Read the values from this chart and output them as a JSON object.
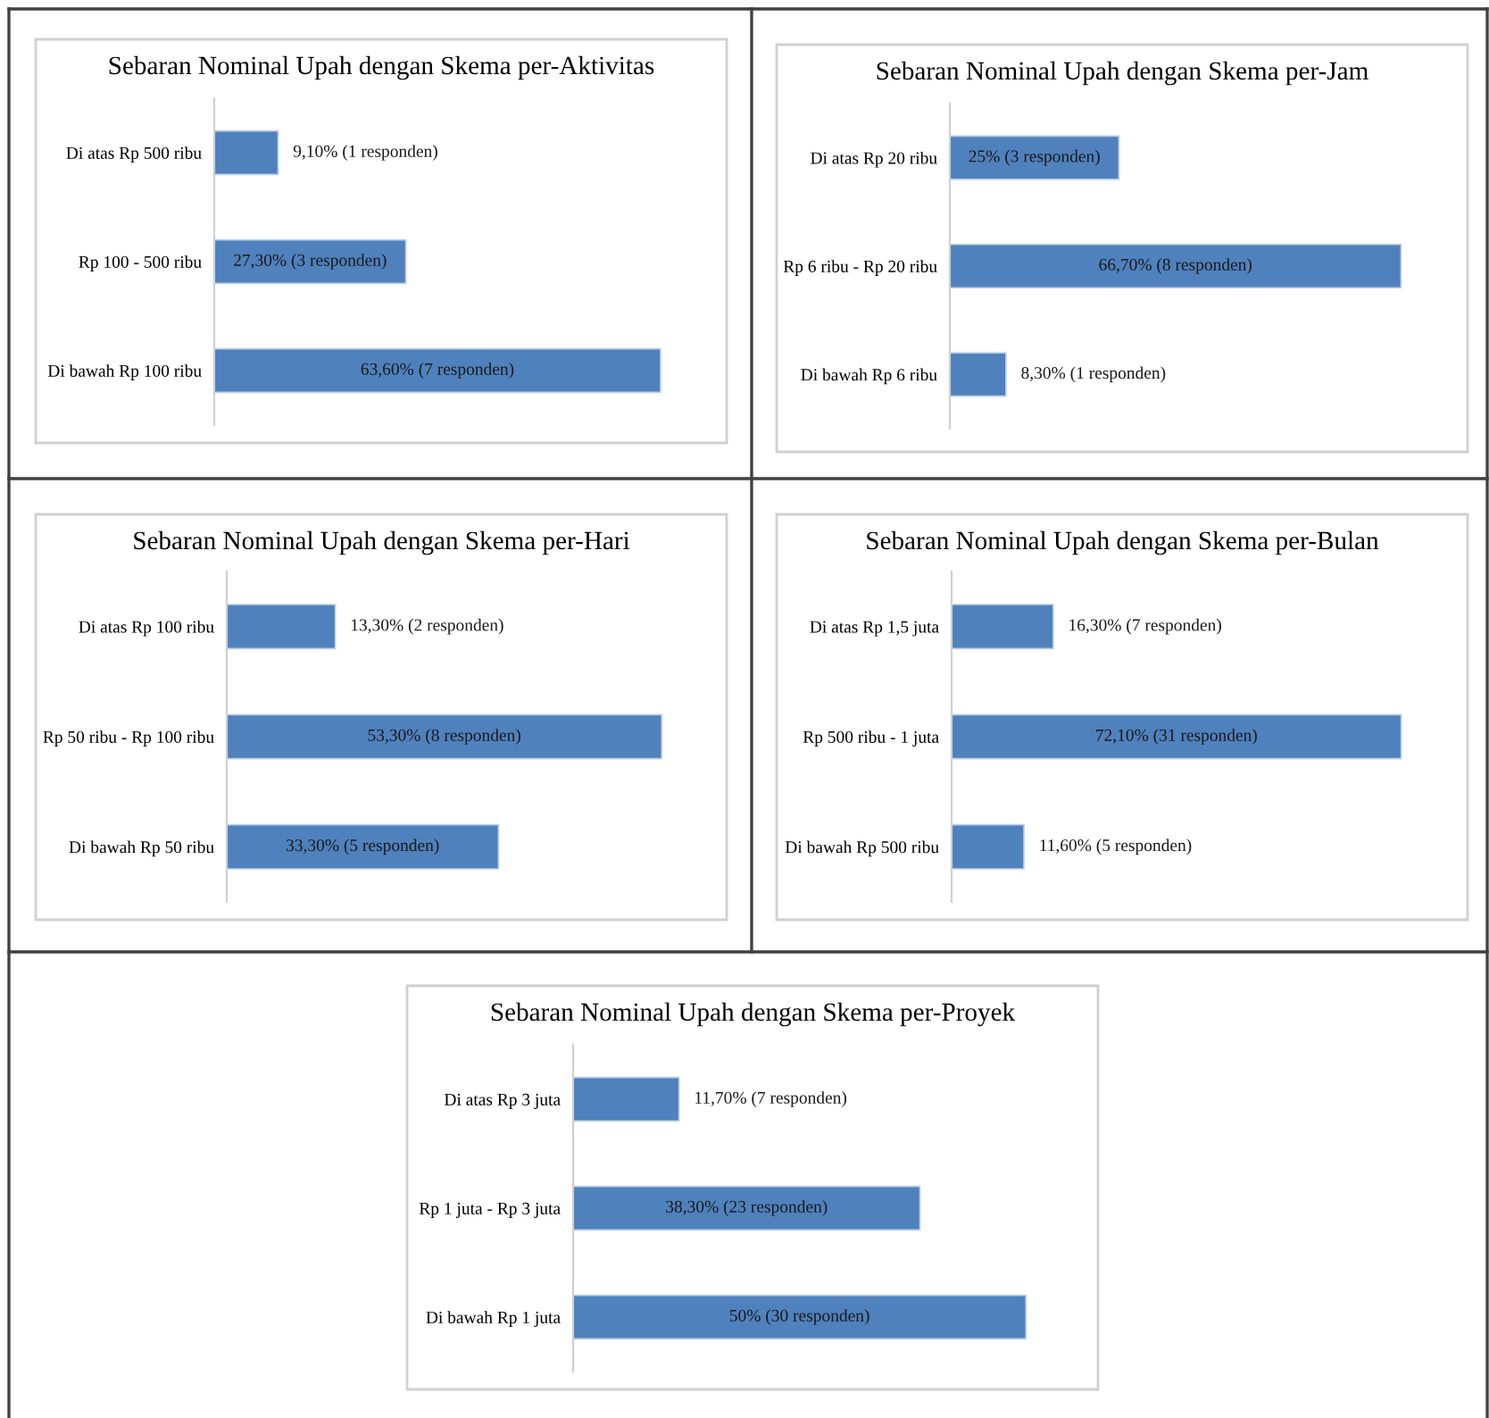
{
  "chart_data": [
    {
      "type": "bar",
      "orientation": "horizontal",
      "title": "Sebaran Nominal Upah dengan Skema per-Aktivitas",
      "categories": [
        "Di atas Rp 500 ribu",
        "Rp 100 - 500 ribu",
        "Di bawah Rp 100 ribu"
      ],
      "values": [
        9.1,
        27.3,
        63.6
      ],
      "value_labels": [
        "9,10% (1 responden)",
        "27,30% (3 responden)",
        "63,60% (7 responden)"
      ],
      "color": "#4f81bd",
      "tick_labels": "y"
    },
    {
      "type": "bar",
      "orientation": "horizontal",
      "title": "Sebaran Nominal Upah dengan Skema per-Jam",
      "categories": [
        "Di atas Rp 20 ribu",
        "Rp 6 ribu - Rp 20 ribu",
        "Di bawah Rp 6 ribu"
      ],
      "values": [
        25,
        66.7,
        8.3
      ],
      "value_labels": [
        "25% (3 responden)",
        "66,70% (8 responden)",
        "8,30% (1 responden)"
      ],
      "color": "#4f81bd",
      "tick_labels": "y"
    },
    {
      "type": "bar",
      "orientation": "horizontal",
      "title": "Sebaran Nominal Upah dengan Skema per-Hari",
      "categories": [
        "Di atas Rp 100 ribu",
        "Rp 50 ribu - Rp 100 ribu",
        "Di bawah Rp 50 ribu"
      ],
      "values": [
        13.3,
        53.3,
        33.3
      ],
      "value_labels": [
        "13,30% (2 responden)",
        "53,30% (8 responden)",
        "33,30% (5 responden)"
      ],
      "color": "#4f81bd",
      "tick_labels": "y"
    },
    {
      "type": "bar",
      "orientation": "horizontal",
      "title": "Sebaran Nominal Upah dengan Skema per-Bulan",
      "categories": [
        "Di atas Rp 1,5 juta",
        "Rp 500 ribu - 1 juta",
        "Di bawah Rp 500 ribu"
      ],
      "values": [
        16.3,
        72.1,
        11.6
      ],
      "value_labels": [
        "16,30% (7 responden)",
        "72,10% (31 responden)",
        "11,60% (5 responden)"
      ],
      "color": "#4f81bd",
      "tick_labels": "y"
    },
    {
      "type": "bar",
      "orientation": "horizontal",
      "title": "Sebaran Nominal Upah dengan Skema per-Proyek",
      "categories": [
        "Di atas Rp 3 juta",
        "Rp 1 juta - Rp 3 juta",
        "Di bawah Rp 1 juta"
      ],
      "values": [
        11.7,
        38.3,
        50
      ],
      "value_labels": [
        "11,70% (7 responden)",
        "38,30% (23 responden)",
        "50% (30 responden)"
      ],
      "color": "#4f81bd",
      "tick_labels": "y"
    }
  ]
}
